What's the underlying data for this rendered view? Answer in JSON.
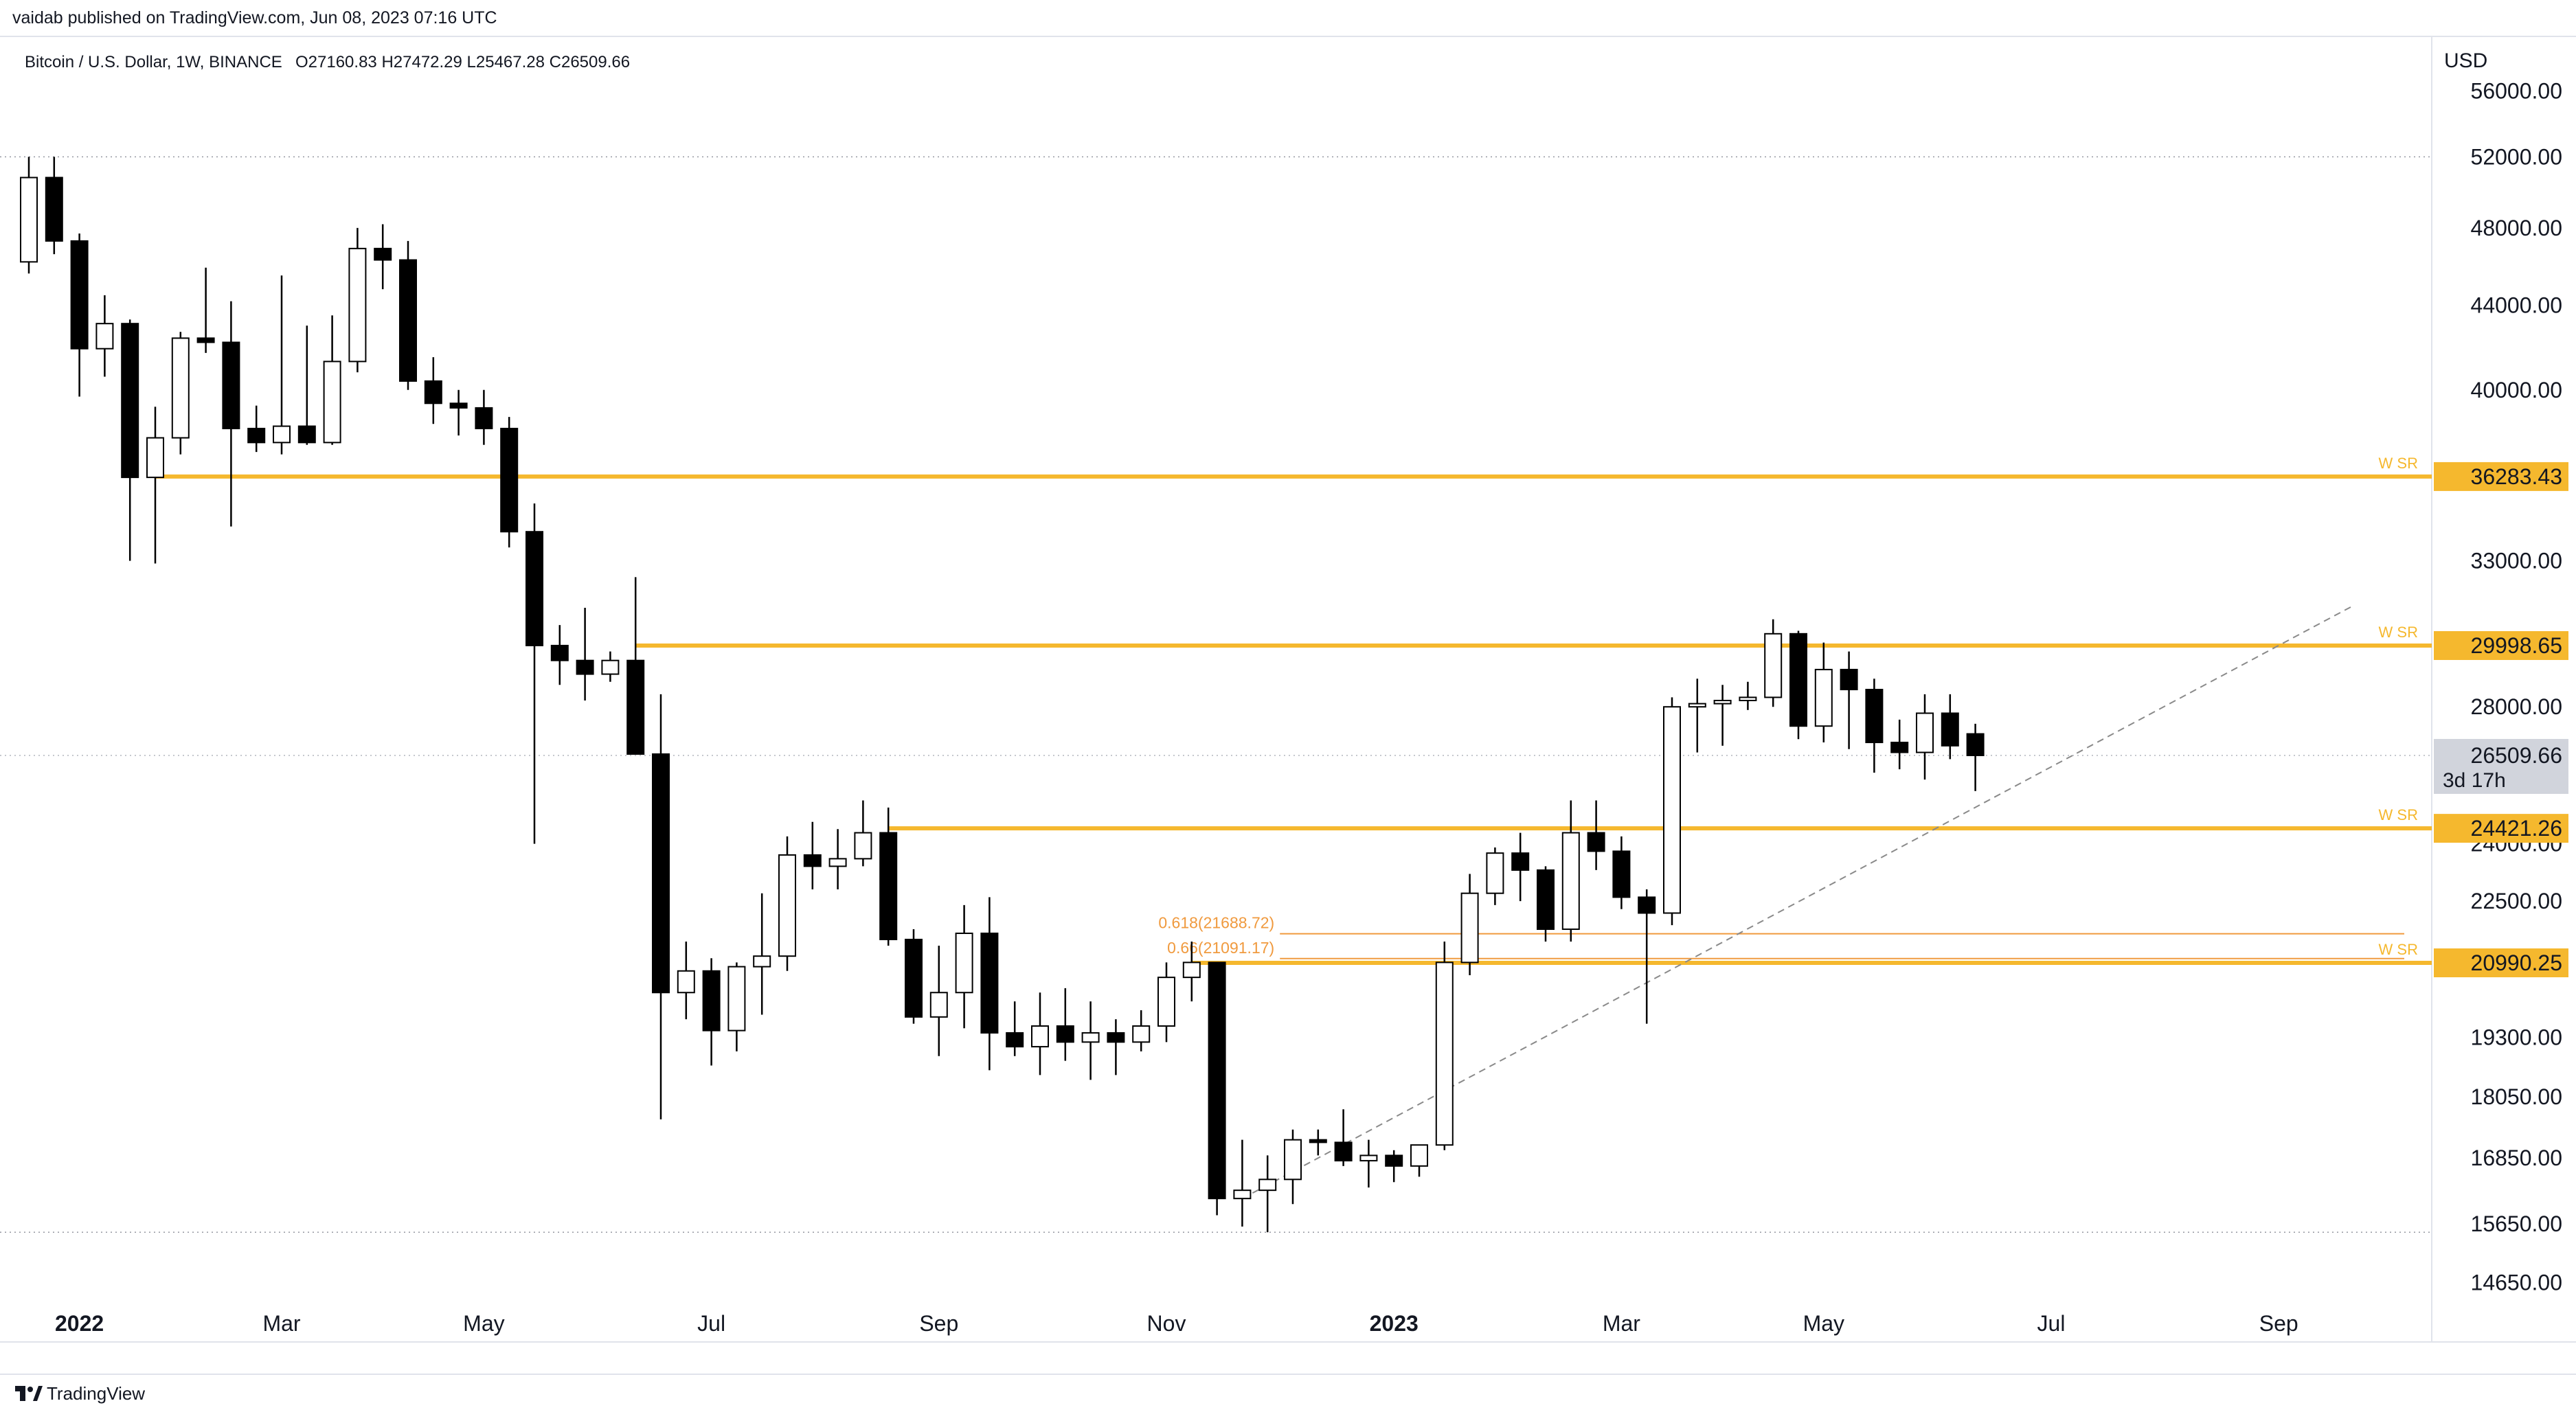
{
  "header": {
    "publisher_text": "vaidab published on TradingView.com, Jun 08, 2023 07:16 UTC"
  },
  "footer": {
    "brand": "TradingView"
  },
  "colors": {
    "bull": "#ffffff",
    "bear": "#000000",
    "wick": "#000000",
    "sr": "#f5b82e",
    "fib": "#f09a3e",
    "trend": "#8a8a8a",
    "last_price_bg": "#d1d4dc"
  },
  "chart_data": {
    "type": "candlestick",
    "symbol_info": "Bitcoin / U.S. Dollar, 1W, BINANCE",
    "ohlc_info": "O27160.83  H27472.29  L25467.28  C26509.66",
    "currency": "USD",
    "y_scale": "log",
    "ylim": [
      13700,
      59500
    ],
    "y_ticks": [
      56000,
      52000,
      48000,
      44000,
      40000,
      33000,
      28000,
      24000,
      22500,
      19300,
      18050,
      16850,
      15650,
      14650
    ],
    "y_tick_labels": [
      "56000.00",
      "52000.00",
      "48000.00",
      "44000.00",
      "40000.00",
      "33000.00",
      "28000.00",
      "24000.00",
      "22500.00",
      "19300.00",
      "18050.00",
      "16850.00",
      "15650.00",
      "14650.00"
    ],
    "x_ticks": [
      {
        "label": "2022",
        "week": 2,
        "bold": true
      },
      {
        "label": "Mar",
        "week": 10
      },
      {
        "label": "May",
        "week": 18
      },
      {
        "label": "Jul",
        "week": 27
      },
      {
        "label": "Sep",
        "week": 36
      },
      {
        "label": "Nov",
        "week": 45
      },
      {
        "label": "2023",
        "week": 54,
        "bold": true
      },
      {
        "label": "Mar",
        "week": 63
      },
      {
        "label": "May",
        "week": 71
      },
      {
        "label": "Jul",
        "week": 80
      },
      {
        "label": "Sep",
        "week": 89
      }
    ],
    "candles": [
      [
        46200,
        52000,
        45600,
        50800
      ],
      [
        50800,
        52000,
        46600,
        47300
      ],
      [
        47300,
        47700,
        39700,
        41900
      ],
      [
        41900,
        44500,
        40600,
        43100
      ],
      [
        43100,
        43300,
        33000,
        36250
      ],
      [
        36250,
        39250,
        32900,
        37900
      ],
      [
        37900,
        42700,
        37200,
        42400
      ],
      [
        42400,
        45900,
        41700,
        42200
      ],
      [
        42200,
        44200,
        34300,
        38300
      ],
      [
        38300,
        39300,
        37300,
        37700
      ],
      [
        37700,
        45500,
        37200,
        38400
      ],
      [
        38400,
        43000,
        37600,
        37700
      ],
      [
        37700,
        43500,
        37600,
        41300
      ],
      [
        41300,
        48000,
        40800,
        46900
      ],
      [
        46900,
        48200,
        44800,
        46300
      ],
      [
        46300,
        47300,
        40000,
        40400
      ],
      [
        40400,
        41500,
        38500,
        39400
      ],
      [
        39400,
        40000,
        38000,
        39200
      ],
      [
        39200,
        40000,
        37600,
        38300
      ],
      [
        38300,
        38800,
        33500,
        34100
      ],
      [
        34100,
        35200,
        24000,
        30000
      ],
      [
        30000,
        30700,
        28700,
        29500
      ],
      [
        29500,
        31300,
        28200,
        29050
      ],
      [
        29050,
        29800,
        28800,
        29500
      ],
      [
        29500,
        32400,
        26600,
        26550
      ],
      [
        26550,
        28400,
        17600,
        20300
      ],
      [
        20300,
        21500,
        19700,
        20800
      ],
      [
        20800,
        21100,
        18700,
        19450
      ],
      [
        19450,
        21000,
        19000,
        20900
      ],
      [
        20900,
        22700,
        19800,
        21150
      ],
      [
        21150,
        24200,
        20800,
        23700
      ],
      [
        23700,
        24600,
        22800,
        23400
      ],
      [
        23400,
        24400,
        22800,
        23600
      ],
      [
        23600,
        25200,
        23400,
        24300
      ],
      [
        24300,
        25000,
        21400,
        21550
      ],
      [
        21550,
        21800,
        19600,
        19750
      ],
      [
        19750,
        21400,
        18900,
        20300
      ],
      [
        20300,
        22400,
        19500,
        21700
      ],
      [
        21700,
        22600,
        18600,
        19400
      ],
      [
        19400,
        20100,
        18900,
        19100
      ],
      [
        19100,
        20300,
        18500,
        19550
      ],
      [
        19550,
        20400,
        18800,
        19200
      ],
      [
        19200,
        20100,
        18400,
        19400
      ],
      [
        19400,
        19700,
        18500,
        19200
      ],
      [
        19200,
        19900,
        19000,
        19550
      ],
      [
        19550,
        21000,
        19200,
        20650
      ],
      [
        20650,
        21500,
        20100,
        21000
      ],
      [
        21000,
        21000,
        15800,
        16100
      ],
      [
        16100,
        17200,
        15600,
        16250
      ],
      [
        16250,
        16900,
        15500,
        16450
      ],
      [
        16450,
        17400,
        16000,
        17200
      ],
      [
        17200,
        17400,
        16900,
        17150
      ],
      [
        17150,
        17800,
        16700,
        16800
      ],
      [
        16800,
        17200,
        16300,
        16900
      ],
      [
        16900,
        17000,
        16400,
        16700
      ],
      [
        16700,
        16900,
        16500,
        17100
      ],
      [
        17100,
        21500,
        17000,
        21000
      ],
      [
        21000,
        23200,
        20700,
        22700
      ],
      [
        22700,
        23900,
        22400,
        23750
      ],
      [
        23750,
        24300,
        22500,
        23300
      ],
      [
        23300,
        23400,
        21500,
        21800
      ],
      [
        21800,
        25200,
        21500,
        24300
      ],
      [
        24300,
        25200,
        23300,
        23800
      ],
      [
        23800,
        24200,
        22300,
        22600
      ],
      [
        22600,
        22800,
        19600,
        22200
      ],
      [
        22200,
        28300,
        21900,
        28000
      ],
      [
        28000,
        28900,
        26600,
        28100
      ],
      [
        28100,
        28700,
        26800,
        28200
      ],
      [
        28200,
        28800,
        27900,
        28300
      ],
      [
        28300,
        30900,
        28000,
        30400
      ],
      [
        30400,
        30500,
        27000,
        27400
      ],
      [
        27400,
        30100,
        26900,
        29200
      ],
      [
        29200,
        29800,
        26700,
        28550
      ],
      [
        28550,
        28900,
        26000,
        26900
      ],
      [
        26900,
        27600,
        26100,
        26600
      ],
      [
        26600,
        28400,
        25800,
        27800
      ],
      [
        27800,
        28400,
        26400,
        26800
      ],
      [
        27160.83,
        27472.29,
        25467.28,
        26509.66
      ]
    ],
    "horizontal_levels": [
      {
        "value": 36283.43,
        "label": "36283.43",
        "tag": "W SR",
        "from_week": 5
      },
      {
        "value": 29998.65,
        "label": "29998.65",
        "tag": "W SR",
        "from_week": 24
      },
      {
        "value": 24421.26,
        "label": "24421.26",
        "tag": "W SR",
        "from_week": 34
      },
      {
        "value": 20990.25,
        "label": "20990.25",
        "tag": "W SR",
        "from_week": 46
      }
    ],
    "fib_levels": [
      {
        "value": 21688.72,
        "label": "0.618(21688.72)",
        "from_week": 49
      },
      {
        "value": 21091.17,
        "label": "0.66(21091.17)",
        "from_week": 49
      }
    ],
    "trendline": {
      "from": [
        48,
        16100
      ],
      "to": [
        92,
        31400
      ]
    },
    "dotted_levels": [
      52000,
      15500
    ],
    "last_price": {
      "value": 26509.66,
      "label": "26509.66",
      "countdown": "3d 17h"
    }
  }
}
